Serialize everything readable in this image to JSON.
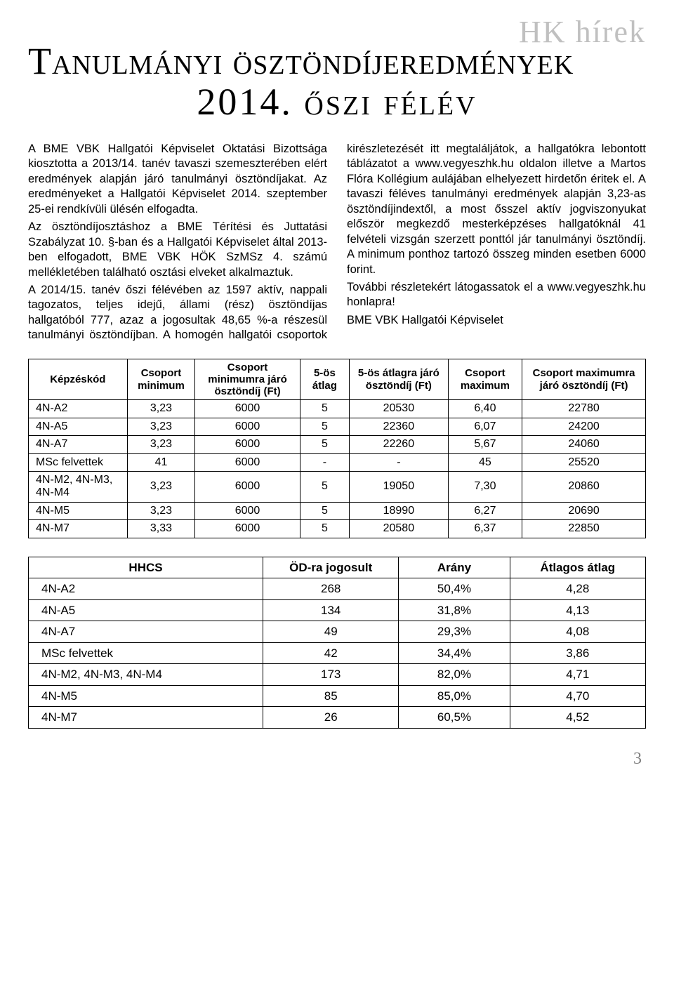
{
  "section_tag": "HK hírek",
  "title_line1": "Tanulmányi ösztöndíjeredmények",
  "title_line2": "2014. őszi félév",
  "body_para1": "A BME VBK Hallgatói Képviselet Oktatási Bizottsága kiosztotta a 2013/14. tanév tavaszi szemeszterében elért eredmények alapján járó tanulmányi ösztöndíjakat. Az eredményeket a Hallgatói Képviselet 2014. szeptember 25-ei rendkívüli ülésén elfogadta.",
  "body_para2": "Az ösztöndíjosztáshoz a BME Térítési és Juttatási Szabályzat 10. §-ban és a Hallgatói Képviselet által 2013-ben elfogadott, BME VBK HÖK SzMSz 4. számú mellékletében található osztási elveket alkalmaztuk.",
  "body_para3": "A 2014/15. tanév őszi félévében az 1597 aktív, nappali tagozatos, teljes idejű, állami (rész) ösztöndíjas hallgatóból 777, azaz a jogosultak 48,65 %-a részesül tanulmányi ösztöndíjban. A homogén hallgatói csoportok kirészletezését itt megtaláljátok, a hallgatókra lebontott táblázatot a www.vegyeszhk.hu oldalon illetve a Martos Flóra Kollégium aulájában elhelyezett hirdetőn éritek el. A tavaszi féléves tanulmányi eredmények alapján 3,23-as ösztöndíjindextől, a most ősszel aktív jogviszonyukat először megkezdő mesterképzéses hallgatóknál 41 felvételi vizsgán szerzett ponttól jár tanulmányi ösztöndíj. A minimum ponthoz tartozó összeg minden esetben 6000 forint.",
  "body_para4": "További részletekért látogassatok el a www.vegyeszhk.hu honlapra!",
  "body_para5": "BME VBK Hallgatói Képviselet",
  "table1": {
    "headers": [
      "Képzéskód",
      "Csoport minimum",
      "Csoport minimumra járó ösztöndíj (Ft)",
      "5-ös átlag",
      "5-ös átlagra járó ösztöndíj (Ft)",
      "Csoport maximum",
      "Csoport maximumra járó ösztöndíj (Ft)"
    ],
    "rows": [
      [
        "4N-A2",
        "3,23",
        "6000",
        "5",
        "20530",
        "6,40",
        "22780"
      ],
      [
        "4N-A5",
        "3,23",
        "6000",
        "5",
        "22360",
        "6,07",
        "24200"
      ],
      [
        "4N-A7",
        "3,23",
        "6000",
        "5",
        "22260",
        "5,67",
        "24060"
      ],
      [
        "MSc felvettek",
        "41",
        "6000",
        "-",
        "-",
        "45",
        "25520"
      ],
      [
        "4N-M2, 4N-M3, 4N-M4",
        "3,23",
        "6000",
        "5",
        "19050",
        "7,30",
        "20860"
      ],
      [
        "4N-M5",
        "3,23",
        "6000",
        "5",
        "18990",
        "6,27",
        "20690"
      ],
      [
        "4N-M7",
        "3,33",
        "6000",
        "5",
        "20580",
        "6,37",
        "22850"
      ]
    ]
  },
  "table2": {
    "headers": [
      "HHCS",
      "ÖD-ra jogosult",
      "Arány",
      "Átlagos átlag"
    ],
    "rows": [
      [
        "4N-A2",
        "268",
        "50,4%",
        "4,28"
      ],
      [
        "4N-A5",
        "134",
        "31,8%",
        "4,13"
      ],
      [
        "4N-A7",
        "49",
        "29,3%",
        "4,08"
      ],
      [
        "MSc felvettek",
        "42",
        "34,4%",
        "3,86"
      ],
      [
        "4N-M2, 4N-M3, 4N-M4",
        "173",
        "82,0%",
        "4,71"
      ],
      [
        "4N-M5",
        "85",
        "85,0%",
        "4,70"
      ],
      [
        "4N-M7",
        "26",
        "60,5%",
        "4,52"
      ]
    ]
  },
  "page_number": "3"
}
